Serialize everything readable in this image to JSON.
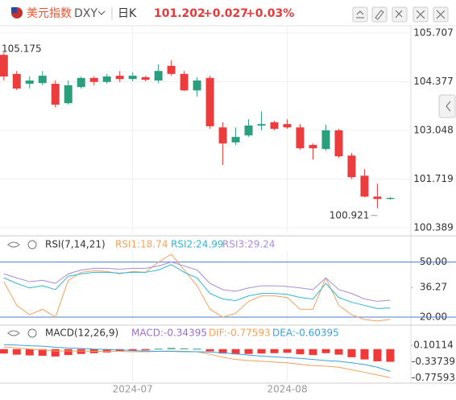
{
  "header": {
    "name": "美元指数",
    "symbol": "DXY",
    "period": "日K",
    "price": "101.202",
    "change": "+0.027",
    "change_pct": "+0.03%"
  },
  "chart_data": [
    {
      "type": "candlestick",
      "up_color": "#2b9e7e",
      "down_color": "#eb3d3d",
      "open": [
        105.11,
        104.59,
        104.32,
        104.34,
        104.32,
        103.79,
        104.23,
        104.48,
        104.37,
        104.54,
        104.45,
        104.5,
        104.41,
        104.81,
        104.59,
        104.14,
        104.48,
        103.13,
        102.72,
        102.91,
        103.18,
        103.27,
        103.22,
        103.13,
        102.65,
        102.54,
        103.05,
        102.36,
        101.81,
        101.24,
        101.175
      ],
      "high": [
        105.175,
        104.67,
        104.52,
        104.67,
        104.41,
        104.41,
        104.52,
        104.52,
        104.59,
        104.67,
        104.63,
        104.54,
        104.85,
        104.96,
        104.67,
        104.5,
        104.54,
        103.27,
        103.13,
        103.35,
        103.57,
        103.31,
        103.35,
        103.22,
        102.69,
        103.2,
        103.09,
        102.43,
        101.99,
        101.59,
        101.23
      ],
      "low": [
        104.41,
        104.14,
        104.19,
        104.28,
        103.68,
        103.75,
        104.19,
        104.28,
        104.32,
        104.37,
        104.39,
        104.39,
        104.34,
        104.54,
        104.12,
        103.97,
        103.09,
        102.1,
        102.65,
        102.87,
        103.05,
        103.05,
        103.09,
        102.52,
        102.25,
        102.49,
        102.3,
        101.72,
        101.22,
        100.921,
        101.15
      ],
      "close": [
        104.52,
        104.19,
        104.41,
        104.54,
        103.75,
        104.28,
        104.48,
        104.37,
        104.52,
        104.45,
        104.54,
        104.43,
        104.67,
        104.59,
        104.14,
        104.41,
        103.16,
        102.69,
        102.87,
        103.18,
        103.22,
        103.09,
        103.13,
        102.56,
        102.56,
        103.05,
        102.34,
        101.77,
        101.24,
        101.175,
        101.202
      ],
      "high_mark": 105.175,
      "low_mark": 100.921,
      "ylim": [
        100.235,
        105.905
      ],
      "yticks": [
        105.707,
        104.377,
        103.048,
        101.719,
        100.389
      ],
      "xlim": [
        -0.3,
        31.6
      ],
      "xticks": [
        {
          "value": 10,
          "label": "2024-07"
        },
        {
          "value": 22,
          "label": "2024-08"
        }
      ],
      "grid": true
    },
    {
      "type": "line",
      "title": "RSI(7,14,21)",
      "ylim": [
        16.5,
        56
      ],
      "yticks": [
        {
          "value": 50,
          "label": "50.00"
        },
        36.27,
        {
          "value": 20,
          "label": "20.00"
        }
      ],
      "hlines": [
        50,
        20
      ],
      "hline_color": "#4a7fd0",
      "series": [
        {
          "name": "RSI1",
          "label": "RSI1:18.74",
          "color": "#f2a25a",
          "values": [
            39.3,
            26.4,
            21.3,
            24.3,
            20.0,
            40.1,
            44.4,
            45.3,
            44.9,
            43.6,
            44.9,
            44.4,
            50,
            54.3,
            45.7,
            37.1,
            24.3,
            20.0,
            22.1,
            28.6,
            31.6,
            31.6,
            30.7,
            24.3,
            24.3,
            41.4,
            26.4,
            21.3,
            18.7,
            17.9,
            18.74
          ]
        },
        {
          "name": "RSI2",
          "label": "RSI2:24.99",
          "color": "#2fb7d6",
          "values": [
            41.4,
            38.4,
            35.9,
            37.1,
            35.0,
            42.3,
            43.6,
            44.4,
            44.4,
            44.0,
            44.4,
            44.4,
            45.7,
            48.7,
            44.4,
            41.4,
            32.9,
            29.9,
            29.0,
            31.6,
            32.9,
            32.9,
            32.4,
            30.7,
            29.9,
            38.4,
            30.7,
            28.1,
            26.4,
            24.7,
            24.99
          ]
        },
        {
          "name": "RSI3",
          "label": "RSI3:29.24",
          "color": "#a98bdc",
          "values": [
            43.6,
            41.4,
            39.3,
            40.1,
            38.4,
            43.6,
            45.7,
            46.6,
            46.6,
            46.1,
            46.6,
            46.6,
            47.9,
            50,
            47.9,
            45.7,
            38.4,
            35.0,
            34.1,
            35.9,
            37.1,
            37.1,
            36.7,
            35.9,
            35.0,
            41.4,
            35.0,
            32.9,
            29.9,
            28.6,
            29.24
          ]
        }
      ]
    },
    {
      "type": "macd",
      "title": "MACD(12,26,9)",
      "ylim": [
        -0.92,
        0.3
      ],
      "yticks": [
        0.10114,
        -0.33739,
        -0.77593
      ],
      "histogram": {
        "name": "MACD",
        "label": "MACD:-0.34395",
        "color": "#9b6cd8",
        "up_color": "#2b9e7e",
        "down_color": "#f03a3a",
        "values": [
          -0.12,
          -0.15,
          -0.17,
          -0.18,
          -0.2,
          -0.16,
          -0.13,
          -0.11,
          -0.09,
          -0.07,
          -0.05,
          -0.03,
          0.01,
          0.03,
          0.02,
          0.01,
          -0.06,
          -0.12,
          -0.14,
          -0.13,
          -0.12,
          -0.11,
          -0.1,
          -0.14,
          -0.16,
          -0.11,
          -0.15,
          -0.22,
          -0.28,
          -0.33,
          -0.34395
        ]
      },
      "series": [
        {
          "name": "DIF",
          "label": "DIF:-0.77593",
          "color": "#f2a25a",
          "values": [
            0.06,
            0.03,
            0.0,
            -0.02,
            -0.05,
            -0.05,
            -0.05,
            -0.06,
            -0.06,
            -0.06,
            -0.07,
            -0.07,
            -0.06,
            -0.05,
            -0.06,
            -0.07,
            -0.14,
            -0.22,
            -0.28,
            -0.31,
            -0.33,
            -0.35,
            -0.37,
            -0.41,
            -0.45,
            -0.46,
            -0.49,
            -0.56,
            -0.63,
            -0.7,
            -0.77593
          ]
        },
        {
          "name": "DEA",
          "label": "DEA:-0.60395",
          "color": "#3a9fe0",
          "values": [
            0.12,
            0.11,
            0.09,
            0.08,
            0.05,
            0.03,
            0.02,
            0.0,
            -0.01,
            -0.02,
            -0.04,
            -0.05,
            -0.06,
            -0.06,
            -0.07,
            -0.07,
            -0.08,
            -0.1,
            -0.13,
            -0.16,
            -0.19,
            -0.21,
            -0.23,
            -0.25,
            -0.28,
            -0.31,
            -0.33,
            -0.37,
            -0.42,
            -0.49,
            -0.60395
          ]
        }
      ]
    }
  ]
}
